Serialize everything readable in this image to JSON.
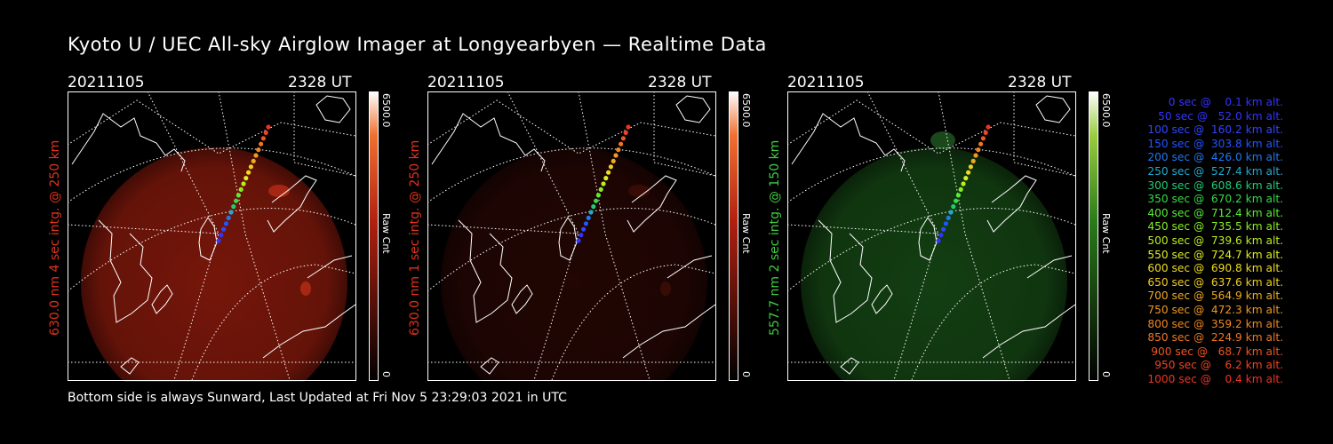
{
  "title": "Kyoto U / UEC All-sky Airglow Imager at Longyearbyen — Realtime Data",
  "footer": "Bottom side is always Sunward, Last Updated at Fri Nov  5 23:29:03 2021 in UTC",
  "colors": {
    "red_channel": "#cc2a16",
    "green_channel": "#1f8a1f"
  },
  "panels": [
    {
      "date": "20211105",
      "time": "2328 UT",
      "ylabel": "630.0 nm 4 sec intg. @ 250 km",
      "ylabel_color": "#e0331c",
      "colorbar_max": "6500.0",
      "colorbar_min": "0",
      "colorbar_label": "Raw Cnt",
      "channel": "red"
    },
    {
      "date": "20211105",
      "time": "2328 UT",
      "ylabel": "630.0 nm 1 sec intg. @ 250 km",
      "ylabel_color": "#e0331c",
      "colorbar_max": "6500.0",
      "colorbar_min": "0",
      "colorbar_label": "Raw Cnt",
      "channel": "red"
    },
    {
      "date": "20211105",
      "time": "2328 UT",
      "ylabel": "557.7 nm 2 sec intg. @ 150 km",
      "ylabel_color": "#3fcc3f",
      "colorbar_max": "6500.0",
      "colorbar_min": "0",
      "colorbar_label": "Raw Cnt",
      "channel": "green"
    }
  ],
  "chart_data": {
    "type": "scatter",
    "title": "Kyoto U / UEC All-sky Airglow Imager at Longyearbyen — Realtime Data",
    "series": [
      {
        "t_sec": [
          0,
          50,
          100,
          150,
          200,
          250,
          300,
          350,
          400,
          450,
          500,
          550,
          600,
          650,
          700,
          750,
          800,
          850,
          900,
          950,
          1000
        ],
        "altitude_km": [
          0.1,
          52.0,
          160.2,
          303.8,
          426.0,
          527.4,
          608.6,
          670.2,
          712.4,
          735.5,
          739.6,
          724.7,
          690.8,
          637.6,
          564.9,
          472.3,
          359.2,
          224.9,
          68.7,
          6.2,
          0.4
        ]
      }
    ],
    "legend": [
      {
        "text": "0 sec @    0.1 km alt.",
        "color": "#3333ff"
      },
      {
        "text": "50 sec @   52.0 km alt.",
        "color": "#3333ff"
      },
      {
        "text": "100 sec @  160.2 km alt.",
        "color": "#3344ff"
      },
      {
        "text": "150 sec @  303.8 km alt.",
        "color": "#2255ff"
      },
      {
        "text": "200 sec @  426.0 km alt.",
        "color": "#2277ee"
      },
      {
        "text": "250 sec @  527.4 km alt.",
        "color": "#22aacc"
      },
      {
        "text": "300 sec @  608.6 km alt.",
        "color": "#22cc77"
      },
      {
        "text": "350 sec @  670.2 km alt.",
        "color": "#33dd44"
      },
      {
        "text": "400 sec @  712.4 km alt.",
        "color": "#55ee33"
      },
      {
        "text": "450 sec @  735.5 km alt.",
        "color": "#88ee22"
      },
      {
        "text": "500 sec @  739.6 km alt.",
        "color": "#bbee22"
      },
      {
        "text": "550 sec @  724.7 km alt.",
        "color": "#ddee22"
      },
      {
        "text": "600 sec @  690.8 km alt.",
        "color": "#eedd22"
      },
      {
        "text": "650 sec @  637.6 km alt.",
        "color": "#eecc22"
      },
      {
        "text": "700 sec @  564.9 km alt.",
        "color": "#eeaa22"
      },
      {
        "text": "750 sec @  472.3 km alt.",
        "color": "#ee9922"
      },
      {
        "text": "800 sec @  359.2 km alt.",
        "color": "#ee8822"
      },
      {
        "text": "850 sec @  224.9 km alt.",
        "color": "#ee7722"
      },
      {
        "text": "900 sec @   68.7 km alt.",
        "color": "#ee5522"
      },
      {
        "text": "950 sec @    6.2 km alt.",
        "color": "#ee4422"
      },
      {
        "text": "1000 sec @    0.4 km alt.",
        "color": "#ee3322"
      }
    ]
  }
}
